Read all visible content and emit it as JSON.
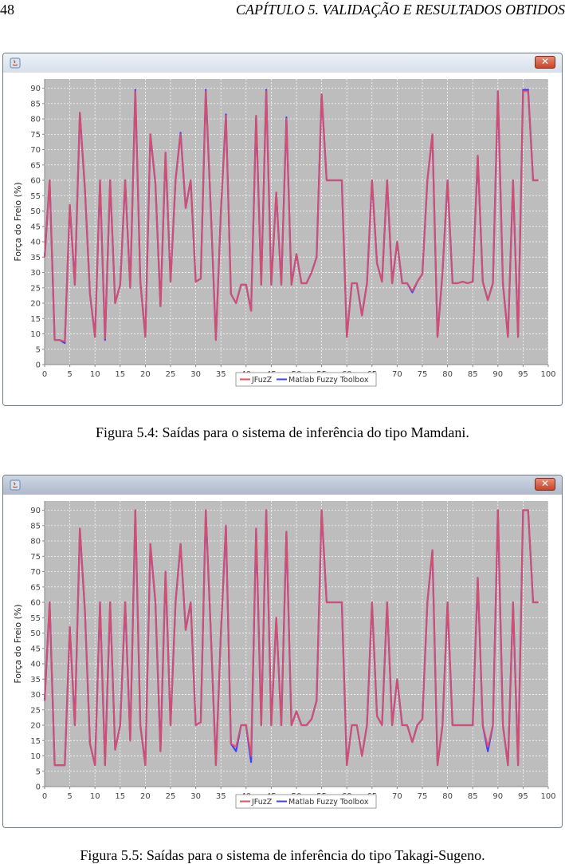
{
  "header": {
    "page_number": "48",
    "chapter_title": "CAPÍTULO 5.  VALIDAÇÃO E RESULTADOS OBTIDOS"
  },
  "figures": [
    {
      "caption": "Figura 5.4: Saídas para o sistema de inferência do tipo Mamdani.",
      "close_icon": "close-icon"
    },
    {
      "caption": "Figura 5.5: Saídas para o sistema de inferência do tipo Takagi-Sugeno.",
      "close_icon": "close-icon"
    }
  ],
  "colors": {
    "plot_bg": "#bdbdbd",
    "jfuzz": "#e8505c",
    "matlab": "#4040ff",
    "grid": "#ffffff"
  },
  "chart_data": [
    {
      "type": "line",
      "title": "",
      "xlabel": "",
      "ylabel": "Força do Freio (%)",
      "xlim": [
        0,
        100
      ],
      "ylim": [
        0,
        93
      ],
      "xticks": [
        0,
        5,
        10,
        15,
        20,
        25,
        30,
        35,
        40,
        45,
        50,
        55,
        60,
        65,
        70,
        75,
        80,
        85,
        90,
        95,
        100
      ],
      "yticks": [
        0,
        5,
        10,
        15,
        20,
        25,
        30,
        35,
        40,
        45,
        50,
        55,
        60,
        65,
        70,
        75,
        80,
        85,
        90
      ],
      "grid": true,
      "legend": "bottom-center",
      "x": [
        0,
        1,
        2,
        3,
        4,
        5,
        6,
        7,
        8,
        9,
        10,
        11,
        12,
        13,
        14,
        15,
        16,
        17,
        18,
        19,
        20,
        21,
        22,
        23,
        24,
        25,
        26,
        27,
        28,
        29,
        30,
        31,
        32,
        33,
        34,
        35,
        36,
        37,
        38,
        39,
        40,
        41,
        42,
        43,
        44,
        45,
        46,
        47,
        48,
        49,
        50,
        51,
        52,
        53,
        54,
        55,
        56,
        57,
        58,
        59,
        60,
        61,
        62,
        63,
        64,
        65,
        66,
        67,
        68,
        69,
        70,
        71,
        72,
        73,
        74,
        75,
        76,
        77,
        78,
        79,
        80,
        81,
        82,
        83,
        84,
        85,
        86,
        87,
        88,
        89,
        90,
        91,
        92,
        93,
        94,
        95,
        96,
        97,
        98,
        99
      ],
      "series": [
        {
          "name": "JFuzZ",
          "values": [
            35,
            60,
            8,
            8,
            7.5,
            52,
            26,
            82,
            57,
            23,
            9,
            60,
            8.5,
            60,
            20,
            26,
            60,
            25,
            89,
            27,
            9,
            75,
            59,
            19,
            69,
            27,
            60,
            75,
            51,
            60,
            27,
            28,
            89,
            50,
            8,
            50,
            81,
            23,
            20,
            26,
            26,
            17.5,
            81,
            26,
            89,
            26,
            56,
            26,
            80,
            26,
            36,
            26.5,
            26.5,
            30,
            35,
            88,
            60,
            60,
            60,
            60,
            9,
            26.5,
            26.5,
            16,
            26.5,
            60,
            33,
            27,
            60,
            26.5,
            40,
            26.5,
            26.5,
            24,
            27,
            29.5,
            60,
            75,
            9,
            30,
            60,
            26.5,
            26.5,
            27,
            26.5,
            27,
            68,
            27,
            21,
            26.5,
            89,
            26.5,
            9,
            60,
            9,
            89,
            89,
            60,
            60,
            null
          ]
        },
        {
          "name": "Matlab Fuzzy Toolbox",
          "values": [
            35,
            60,
            8,
            8,
            7,
            52,
            26,
            82,
            57,
            23,
            9,
            60,
            8,
            60,
            20,
            26,
            60,
            25,
            89.5,
            27,
            9,
            75,
            59,
            19,
            69,
            27,
            60,
            75.5,
            51,
            60,
            27,
            28,
            89.5,
            50,
            8,
            50,
            81.5,
            23,
            20,
            26,
            26,
            17.5,
            81,
            26,
            89.5,
            26,
            56,
            26,
            80.5,
            26,
            36,
            26.5,
            26.5,
            30,
            35,
            88,
            60,
            60,
            60,
            60,
            9,
            26.5,
            26.5,
            16,
            26.5,
            60,
            33,
            27,
            60,
            26.5,
            40,
            26.5,
            26.5,
            23.5,
            27,
            29.5,
            60,
            75,
            9,
            30,
            60,
            26.5,
            26.5,
            27,
            26.5,
            27,
            68,
            27,
            21,
            26.5,
            89,
            26.5,
            9,
            60,
            9,
            89.5,
            89.5,
            60,
            60,
            null
          ]
        }
      ],
      "legend_entries": [
        "JFuzZ",
        "Matlab Fuzzy Toolbox"
      ]
    },
    {
      "type": "line",
      "title": "",
      "xlabel": "",
      "ylabel": "Força do Freio (%)",
      "xlim": [
        0,
        100
      ],
      "ylim": [
        0,
        93
      ],
      "xticks": [
        0,
        5,
        10,
        15,
        20,
        25,
        30,
        35,
        40,
        45,
        50,
        55,
        60,
        65,
        70,
        75,
        80,
        85,
        90,
        95,
        100
      ],
      "yticks": [
        0,
        5,
        10,
        15,
        20,
        25,
        30,
        35,
        40,
        45,
        50,
        55,
        60,
        65,
        70,
        75,
        80,
        85,
        90
      ],
      "grid": true,
      "legend": "bottom-center",
      "x": [
        0,
        1,
        2,
        3,
        4,
        5,
        6,
        7,
        8,
        9,
        10,
        11,
        12,
        13,
        14,
        15,
        16,
        17,
        18,
        19,
        20,
        21,
        22,
        23,
        24,
        25,
        26,
        27,
        28,
        29,
        30,
        31,
        32,
        33,
        34,
        35,
        36,
        37,
        38,
        39,
        40,
        41,
        42,
        43,
        44,
        45,
        46,
        47,
        48,
        49,
        50,
        51,
        52,
        53,
        54,
        55,
        56,
        57,
        58,
        59,
        60,
        61,
        62,
        63,
        64,
        65,
        66,
        67,
        68,
        69,
        70,
        71,
        72,
        73,
        74,
        75,
        76,
        77,
        78,
        79,
        80,
        81,
        82,
        83,
        84,
        85,
        86,
        87,
        88,
        89,
        90,
        91,
        92,
        93,
        94,
        95,
        96,
        97,
        98,
        99
      ],
      "series": [
        {
          "name": "JFuzZ",
          "values": [
            28,
            60,
            7,
            7,
            7,
            52,
            20,
            84,
            57,
            14,
            7,
            60,
            7,
            60,
            12,
            20,
            60,
            15,
            90,
            20,
            7,
            79,
            60,
            11.5,
            70,
            20,
            60,
            79,
            51,
            60,
            20,
            21,
            90,
            50,
            7,
            50,
            85,
            14,
            13,
            20,
            20,
            10,
            84,
            20,
            90,
            20,
            55,
            20,
            83,
            20,
            24.5,
            20,
            20,
            22,
            28,
            90,
            60,
            60,
            60,
            60,
            7,
            20,
            20,
            10,
            20,
            60,
            23,
            20,
            60,
            20,
            35,
            20,
            20,
            14.5,
            20,
            22,
            60,
            77,
            7,
            20,
            60,
            20,
            20,
            20,
            20,
            20,
            68,
            20,
            13,
            20,
            90,
            20,
            7,
            60,
            7,
            90,
            90,
            60,
            60,
            null
          ]
        },
        {
          "name": "Matlab Fuzzy Toolbox",
          "values": [
            28,
            60,
            7,
            7,
            7,
            52,
            20,
            84,
            57,
            14,
            7,
            60,
            7,
            60,
            12,
            20,
            60,
            15,
            90,
            20,
            7,
            79,
            60,
            11.5,
            70,
            20,
            60,
            79,
            51,
            60,
            20,
            21,
            90,
            50,
            7,
            50,
            85,
            14,
            11.5,
            20,
            20,
            8,
            84,
            20,
            90,
            20,
            55,
            20,
            83,
            20,
            24.5,
            20,
            20,
            22,
            28,
            90,
            60,
            60,
            60,
            60,
            7,
            20,
            20,
            10,
            20,
            60,
            23,
            20,
            60,
            20,
            35,
            20,
            20,
            14.5,
            20,
            22,
            60,
            77,
            7,
            20,
            60,
            20,
            20,
            20,
            20,
            20,
            68,
            20,
            11.5,
            20,
            90,
            20,
            7,
            60,
            7,
            90,
            90,
            60,
            60,
            null
          ]
        }
      ],
      "legend_entries": [
        "JFuzZ",
        "Matlab Fuzzy Toolbox"
      ]
    }
  ]
}
